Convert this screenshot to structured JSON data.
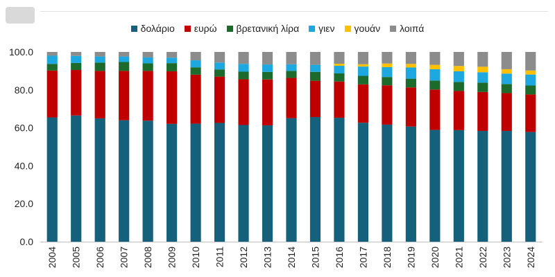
{
  "chart_data": {
    "type": "bar",
    "stacked": true,
    "categories": [
      "2004",
      "2005",
      "2006",
      "2007",
      "2008",
      "2009",
      "2010",
      "2011",
      "2012",
      "2013",
      "2014",
      "2015",
      "2016",
      "2017",
      "2018",
      "2019",
      "2020",
      "2021",
      "2022",
      "2023",
      "2024"
    ],
    "series": [
      {
        "name": "δολάριο",
        "color": "#15607a",
        "values": [
          65.5,
          66.5,
          65.0,
          64.0,
          63.8,
          62.1,
          62.2,
          62.6,
          61.5,
          61.3,
          65.1,
          65.7,
          65.3,
          62.7,
          61.7,
          60.7,
          58.9,
          58.8,
          58.4,
          58.4,
          57.8
        ]
      },
      {
        "name": "ευρώ",
        "color": "#c00000",
        "values": [
          24.7,
          24.0,
          25.0,
          26.0,
          26.2,
          27.7,
          25.8,
          24.4,
          24.1,
          24.2,
          21.2,
          19.1,
          19.1,
          20.2,
          20.7,
          20.6,
          21.3,
          20.6,
          20.5,
          19.9,
          19.8
        ]
      },
      {
        "name": "βρετανική λίρα",
        "color": "#1c6b2c",
        "values": [
          3.5,
          3.7,
          4.4,
          4.7,
          4.0,
          4.3,
          3.9,
          3.8,
          4.0,
          4.0,
          3.7,
          4.7,
          4.3,
          4.5,
          4.4,
          4.6,
          4.7,
          4.8,
          4.9,
          4.8,
          4.7
        ]
      },
      {
        "name": "γιεν",
        "color": "#1ea8e0",
        "values": [
          4.3,
          3.7,
          3.2,
          2.9,
          3.1,
          2.9,
          3.7,
          3.6,
          4.1,
          3.9,
          3.5,
          3.7,
          4.0,
          4.9,
          5.2,
          5.9,
          6.0,
          5.6,
          5.5,
          5.5,
          5.8
        ]
      },
      {
        "name": "γουάν",
        "color": "#ffc000",
        "values": [
          0,
          0,
          0,
          0,
          0,
          0,
          0,
          0,
          0,
          0,
          0,
          0,
          1.1,
          1.2,
          1.9,
          1.9,
          2.3,
          2.8,
          2.9,
          2.3,
          2.1
        ]
      },
      {
        "name": "λοιπά",
        "color": "#8c8c8c",
        "values": [
          2.0,
          2.1,
          2.4,
          2.4,
          2.9,
          3.0,
          4.4,
          5.6,
          6.3,
          6.6,
          6.5,
          6.8,
          6.2,
          6.5,
          6.1,
          6.3,
          6.8,
          7.4,
          7.8,
          9.1,
          9.8
        ]
      }
    ],
    "title": "",
    "xlabel": "",
    "ylabel": "",
    "ylim": [
      0,
      100
    ],
    "yticks": [
      "0.0",
      "20.0",
      "40.0",
      "60.0",
      "80.0",
      "100.0"
    ],
    "grid": false,
    "legend_position": "top-center"
  }
}
